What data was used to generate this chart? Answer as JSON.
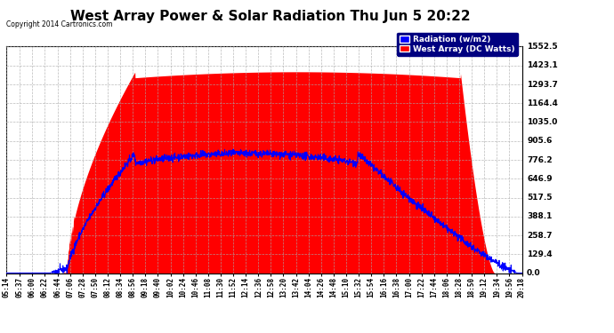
{
  "title": "West Array Power & Solar Radiation Thu Jun 5 20:22",
  "copyright": "Copyright 2014 Cartronics.com",
  "legend_radiation": "Radiation (w/m2)",
  "legend_west": "West Array (DC Watts)",
  "ymin": 0.0,
  "ymax": 1552.5,
  "yticks": [
    0.0,
    129.4,
    258.7,
    388.1,
    517.5,
    646.9,
    776.2,
    905.6,
    1035.0,
    1164.4,
    1293.7,
    1423.1,
    1552.5
  ],
  "background_color": "#ffffff",
  "plot_bg_color": "#ffffff",
  "grid_color": "#aaaaaa",
  "radiation_color": "#0000ff",
  "west_array_color": "#ff0000",
  "title_fontsize": 11,
  "x_time_labels": [
    "05:14",
    "05:37",
    "06:00",
    "06:22",
    "06:44",
    "07:06",
    "07:28",
    "07:50",
    "08:12",
    "08:34",
    "08:56",
    "09:18",
    "09:40",
    "10:02",
    "10:24",
    "10:46",
    "11:08",
    "11:30",
    "11:52",
    "12:14",
    "12:36",
    "12:58",
    "13:20",
    "13:42",
    "14:04",
    "14:26",
    "14:48",
    "15:10",
    "15:32",
    "15:54",
    "16:16",
    "16:38",
    "17:00",
    "17:22",
    "17:44",
    "18:06",
    "18:28",
    "18:50",
    "19:12",
    "19:34",
    "19:56",
    "20:18"
  ]
}
